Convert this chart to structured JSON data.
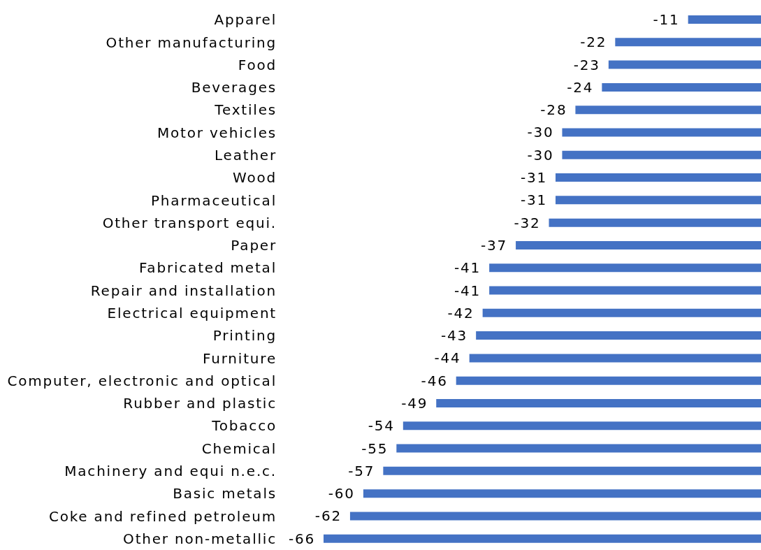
{
  "chart_data": {
    "type": "bar",
    "orientation": "horizontal",
    "data_labels": true,
    "color": "#4472c4",
    "categories": [
      "Apparel",
      "Other manufacturing",
      "Food",
      "Beverages",
      "Textiles",
      "Motor vehicles",
      "Leather",
      "Wood",
      "Pharmaceutical",
      "Other transport equi.",
      "Paper",
      "Fabricated metal",
      "Repair and installation",
      "Electrical equipment",
      "Printing",
      "Furniture",
      "Computer, electronic and optical",
      "Rubber and plastic",
      "Tobacco",
      "Chemical",
      "Machinery and equi n.e.c.",
      "Basic metals",
      "Coke and refined petroleum",
      "Other non-metallic"
    ],
    "values": [
      -11,
      -22,
      -23,
      -24,
      -28,
      -30,
      -30,
      -31,
      -31,
      -32,
      -37,
      -41,
      -41,
      -42,
      -43,
      -44,
      -46,
      -49,
      -54,
      -55,
      -57,
      -60,
      -62,
      -66
    ]
  }
}
